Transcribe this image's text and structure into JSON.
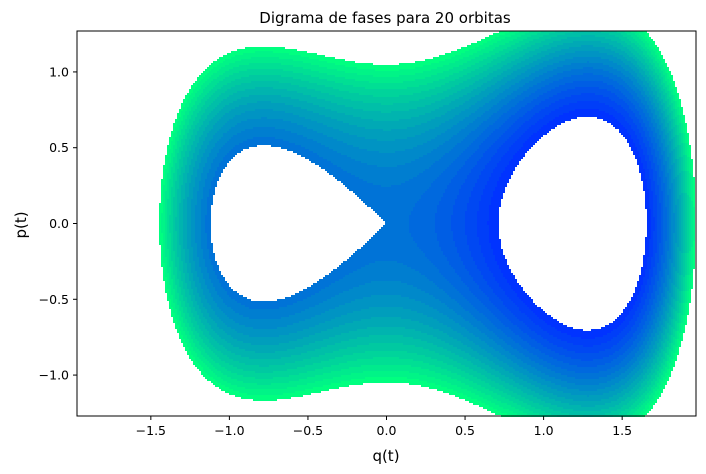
{
  "chart_data": {
    "type": "contour",
    "title": "Digrama de fases para 20 orbitas",
    "xlabel": "q(t)",
    "ylabel": "p(t)",
    "xlim": [
      -1.97,
      1.97
    ],
    "ylim": [
      -1.27,
      1.27
    ],
    "xticks": [
      {
        "value": -1.5,
        "label": "−1.5"
      },
      {
        "value": -1.0,
        "label": "−1.0"
      },
      {
        "value": -0.5,
        "label": "−0.5"
      },
      {
        "value": 0.0,
        "label": "0.0"
      },
      {
        "value": 0.5,
        "label": "0.5"
      },
      {
        "value": 1.0,
        "label": "1.0"
      },
      {
        "value": 1.5,
        "label": "1.5"
      }
    ],
    "yticks": [
      {
        "value": -1.0,
        "label": "−1.0"
      },
      {
        "value": -0.5,
        "label": "−0.5"
      },
      {
        "value": 0.0,
        "label": "0.0"
      },
      {
        "value": 0.5,
        "label": "0.5"
      },
      {
        "value": 1.0,
        "label": "1.0"
      }
    ],
    "orbit_count": 20,
    "energy_levels": [
      -0.25,
      -0.21,
      -0.17,
      -0.13,
      -0.09,
      -0.05,
      -0.01,
      0.03,
      0.07,
      0.11,
      0.15,
      0.19,
      0.23,
      0.27,
      0.31,
      0.35,
      0.39,
      0.43,
      0.47,
      0.51,
      0.55
    ],
    "colormap": [
      "#0033ff",
      "#00ff80"
    ],
    "grid": false,
    "legend": "none"
  }
}
